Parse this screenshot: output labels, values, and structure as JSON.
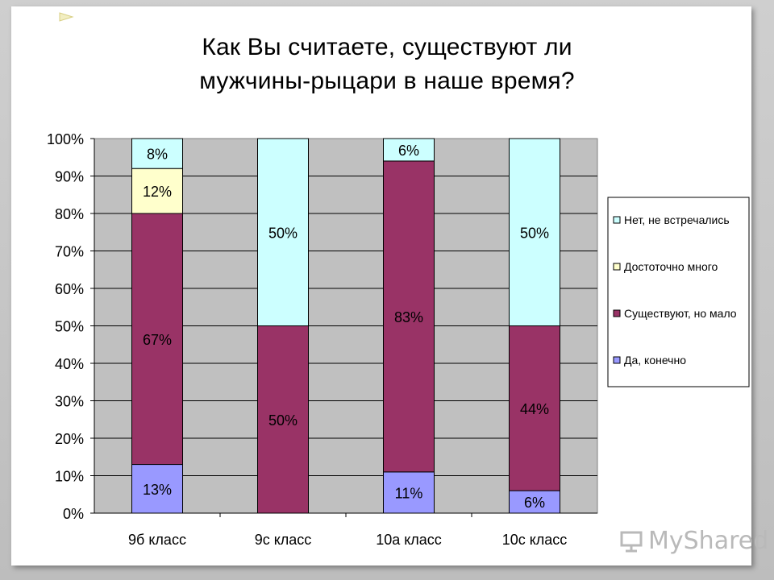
{
  "chart_data": {
    "type": "bar",
    "stacked": true,
    "percent": true,
    "title_lines": [
      "Как Вы считаете, существуют ли",
      "мужчины-рыцари в наше время?"
    ],
    "categories": [
      "9б класс",
      "9с класс",
      "10а класс",
      "10с класс"
    ],
    "ylim": [
      0,
      100
    ],
    "yticks": [
      "0%",
      "10%",
      "20%",
      "30%",
      "40%",
      "50%",
      "60%",
      "70%",
      "80%",
      "90%",
      "100%"
    ],
    "grid": true,
    "legend_position": "right",
    "series": [
      {
        "name": "Да, конечно",
        "color": "#9999ff",
        "values": [
          13,
          0,
          11,
          6
        ],
        "labels": [
          "13%",
          "",
          "11%",
          "6%"
        ]
      },
      {
        "name": "Существуют, но мало",
        "color": "#993366",
        "values": [
          67,
          50,
          83,
          44
        ],
        "labels": [
          "67%",
          "50%",
          "83%",
          "44%"
        ]
      },
      {
        "name": "Достоточно много",
        "color": "#ffffcc",
        "values": [
          12,
          0,
          0,
          0
        ],
        "labels": [
          "12%",
          "",
          "",
          ""
        ]
      },
      {
        "name": "Нет,  не встречались",
        "color": "#ccffff",
        "values": [
          8,
          50,
          6,
          50
        ],
        "labels": [
          "8%",
          "50%",
          "6%",
          "50%"
        ]
      }
    ]
  },
  "watermark": "MyShared"
}
